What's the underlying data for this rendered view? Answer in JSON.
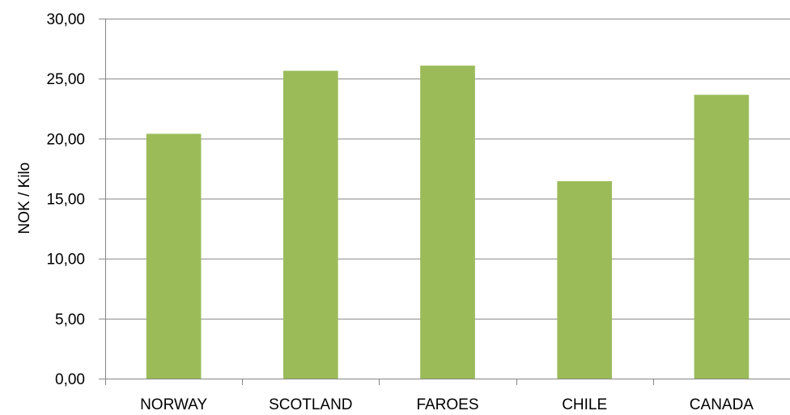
{
  "chart_data": {
    "type": "bar",
    "title": "",
    "xlabel": "",
    "ylabel": "NOK / Kilo",
    "categories": [
      "NORWAY",
      "SCOTLAND",
      "FAROES",
      "CHILE",
      "CANADA"
    ],
    "values": [
      20.4,
      25.65,
      26.08,
      16.45,
      23.65
    ],
    "ylim": [
      0,
      30
    ],
    "yticks": [
      0,
      5,
      10,
      15,
      20,
      25,
      30
    ],
    "ytick_labels": [
      "0,00",
      "5,00",
      "10,00",
      "15,00",
      "20,00",
      "25,00",
      "30,00"
    ],
    "grid": true,
    "legend": "none",
    "colors": {
      "bar": "#9bbb59",
      "grid": "#868686",
      "axis": "#868686"
    }
  }
}
